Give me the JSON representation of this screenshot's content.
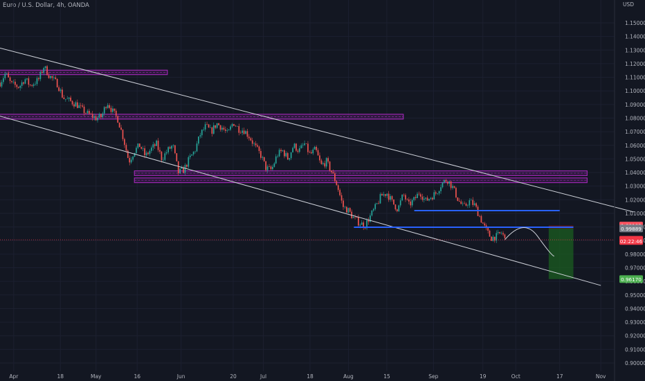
{
  "header": {
    "title": "Euro / U.S. Dollar, 4h, OANDA",
    "currency": "USD"
  },
  "colors": {
    "background": "#131722",
    "up": "#26a69a",
    "down": "#ef5350",
    "channel": "#d1d4dc",
    "zone": "#9c27b0",
    "support": "#2962ff",
    "target_zone": "#1b5e20",
    "stop_zone": "#b71c1c",
    "last_price_badge": "#f23645",
    "target_badge": "#4caf50",
    "entry_badge": "#f7525f",
    "entry_second_badge": "#787b86"
  },
  "chart_data": {
    "type": "candlestick",
    "title": "Euro / U.S. Dollar, 4h, OANDA",
    "xlabel": "",
    "ylabel": "USD",
    "ylim": [
      0.9,
      1.16
    ],
    "y_ticks": [
      1.15,
      1.14,
      1.13,
      1.12,
      1.11,
      1.1,
      1.09,
      1.08,
      1.07,
      1.06,
      1.05,
      1.04,
      1.03,
      1.02,
      1.01,
      1.0,
      0.99,
      0.98,
      0.97,
      0.96,
      0.95,
      0.94,
      0.93,
      0.92,
      0.91,
      0.9
    ],
    "y_tick_labels": [
      "1.15000",
      "1.14000",
      "1.13000",
      "1.12000",
      "1.11000",
      "1.10000",
      "1.09000",
      "1.08000",
      "1.07000",
      "1.06000",
      "1.05000",
      "1.04000",
      "1.03000",
      "1.02000",
      "1.01000",
      "1.00000",
      "0.99000",
      "0.98000",
      "0.97000",
      "0.96000",
      "0.95000",
      "0.94000",
      "0.93000",
      "0.92000",
      "0.91000",
      "0.90000"
    ],
    "x_range": [
      "2022-03-27",
      "2022-11-06"
    ],
    "x_ticks": [
      {
        "label": "Apr",
        "date": "2022-04-01"
      },
      {
        "label": "18",
        "date": "2022-04-18"
      },
      {
        "label": "May",
        "date": "2022-05-01"
      },
      {
        "label": "16",
        "date": "2022-05-16"
      },
      {
        "label": "Jun",
        "date": "2022-06-01"
      },
      {
        "label": "20",
        "date": "2022-06-20"
      },
      {
        "label": "Jul",
        "date": "2022-07-01"
      },
      {
        "label": "18",
        "date": "2022-07-18"
      },
      {
        "label": "Aug",
        "date": "2022-08-01"
      },
      {
        "label": "15",
        "date": "2022-08-15"
      },
      {
        "label": "Sep",
        "date": "2022-09-01"
      },
      {
        "label": "19",
        "date": "2022-09-19"
      },
      {
        "label": "Oct",
        "date": "2022-10-01"
      },
      {
        "label": "17",
        "date": "2022-10-17"
      },
      {
        "label": "Nov",
        "date": "2022-11-01"
      }
    ],
    "price_path": [
      [
        "2022-03-27",
        1.106
      ],
      [
        "2022-03-29",
        1.113
      ],
      [
        "2022-03-31",
        1.105
      ],
      [
        "2022-04-03",
        1.103
      ],
      [
        "2022-04-05",
        1.109
      ],
      [
        "2022-04-07",
        1.104
      ],
      [
        "2022-04-10",
        1.108
      ],
      [
        "2022-04-12",
        1.118
      ],
      [
        "2022-04-14",
        1.111
      ],
      [
        "2022-04-17",
        1.105
      ],
      [
        "2022-04-19",
        1.095
      ],
      [
        "2022-04-21",
        1.093
      ],
      [
        "2022-04-24",
        1.09
      ],
      [
        "2022-04-26",
        1.086
      ],
      [
        "2022-04-28",
        1.083
      ],
      [
        "2022-05-01",
        1.08
      ],
      [
        "2022-05-03",
        1.081
      ],
      [
        "2022-05-05",
        1.092
      ],
      [
        "2022-05-07",
        1.085
      ],
      [
        "2022-05-09",
        1.079
      ],
      [
        "2022-05-11",
        1.065
      ],
      [
        "2022-05-13",
        1.048
      ],
      [
        "2022-05-15",
        1.056
      ],
      [
        "2022-05-17",
        1.06
      ],
      [
        "2022-05-19",
        1.052
      ],
      [
        "2022-05-21",
        1.057
      ],
      [
        "2022-05-23",
        1.061
      ],
      [
        "2022-05-25",
        1.05
      ],
      [
        "2022-05-27",
        1.056
      ],
      [
        "2022-05-29",
        1.06
      ],
      [
        "2022-05-31",
        1.04
      ],
      [
        "2022-06-02",
        1.042
      ],
      [
        "2022-06-04",
        1.05
      ],
      [
        "2022-06-06",
        1.056
      ],
      [
        "2022-06-08",
        1.068
      ],
      [
        "2022-06-10",
        1.074
      ],
      [
        "2022-06-12",
        1.07
      ],
      [
        "2022-06-14",
        1.076
      ],
      [
        "2022-06-16",
        1.073
      ],
      [
        "2022-06-18",
        1.068
      ],
      [
        "2022-06-20",
        1.077
      ],
      [
        "2022-06-22",
        1.072
      ],
      [
        "2022-06-24",
        1.071
      ],
      [
        "2022-06-26",
        1.066
      ],
      [
        "2022-06-28",
        1.059
      ],
      [
        "2022-06-30",
        1.053
      ],
      [
        "2022-07-02",
        1.043
      ],
      [
        "2022-07-04",
        1.042
      ],
      [
        "2022-07-06",
        1.053
      ],
      [
        "2022-07-08",
        1.056
      ],
      [
        "2022-07-10",
        1.05
      ],
      [
        "2022-07-12",
        1.06
      ],
      [
        "2022-07-14",
        1.056
      ],
      [
        "2022-07-16",
        1.061
      ],
      [
        "2022-07-18",
        1.053
      ],
      [
        "2022-07-20",
        1.057
      ],
      [
        "2022-07-22",
        1.045
      ],
      [
        "2022-07-24",
        1.048
      ],
      [
        "2022-07-26",
        1.04
      ],
      [
        "2022-07-28",
        1.03
      ],
      [
        "2022-07-30",
        1.015
      ],
      [
        "2022-08-01",
        1.012
      ],
      [
        "2022-08-03",
        1.006
      ],
      [
        "2022-08-05",
        1.003
      ],
      [
        "2022-08-07",
        1.001
      ],
      [
        "2022-08-09",
        1.008
      ],
      [
        "2022-08-11",
        1.015
      ],
      [
        "2022-08-13",
        1.023
      ],
      [
        "2022-08-15",
        1.025
      ],
      [
        "2022-08-17",
        1.018
      ],
      [
        "2022-08-19",
        1.013
      ],
      [
        "2022-08-21",
        1.024
      ],
      [
        "2022-08-23",
        1.016
      ],
      [
        "2022-08-25",
        1.02
      ],
      [
        "2022-08-27",
        1.026
      ],
      [
        "2022-08-29",
        1.019
      ],
      [
        "2022-08-31",
        1.022
      ],
      [
        "2022-09-02",
        1.025
      ],
      [
        "2022-09-04",
        1.032
      ],
      [
        "2022-09-06",
        1.035
      ],
      [
        "2022-09-08",
        1.029
      ],
      [
        "2022-09-10",
        1.02
      ],
      [
        "2022-09-12",
        1.014
      ],
      [
        "2022-09-14",
        1.019
      ],
      [
        "2022-09-16",
        1.016
      ],
      [
        "2022-09-18",
        1.007
      ],
      [
        "2022-09-20",
        0.998
      ],
      [
        "2022-09-22",
        0.992
      ],
      [
        "2022-09-24",
        0.993
      ],
      [
        "2022-09-26",
        0.996
      ],
      [
        "2022-09-27",
        0.9906
      ]
    ],
    "channel_lines": [
      {
        "from": [
          "2022-03-26",
          1.132
        ],
        "to": [
          "2022-11-13",
          1.011
        ]
      },
      {
        "from": [
          "2022-03-26",
          1.082
        ],
        "to": [
          "2022-11-01",
          0.957
        ]
      }
    ],
    "zones": [
      {
        "from_date": "2022-03-26",
        "to_date": "2022-05-27",
        "top": 1.1142,
        "bottom": 1.113
      },
      {
        "from_date": "2022-03-26",
        "to_date": "2022-08-21",
        "top": 1.0818,
        "bottom": 1.0803
      },
      {
        "from_date": "2022-05-15",
        "to_date": "2022-10-27",
        "top": 1.0402,
        "bottom": 1.0388
      },
      {
        "from_date": "2022-05-15",
        "to_date": "2022-10-27",
        "top": 1.035,
        "bottom": 1.0336
      }
    ],
    "support_lines": [
      {
        "from_date": "2022-08-25",
        "to_date": "2022-10-17",
        "value": 1.012
      },
      {
        "from_date": "2022-08-03",
        "to_date": "2022-10-22",
        "value": 0.9998
      }
    ],
    "projection": [
      [
        "2022-09-27",
        0.9906
      ],
      [
        "2022-10-04",
        0.999
      ],
      [
        "2022-10-09",
        0.993
      ],
      [
        "2022-10-15",
        0.9785
      ]
    ],
    "position": {
      "from_date": "2022-10-13",
      "to_date": "2022-10-22",
      "entry": 0.99889,
      "stop": 1.00103,
      "target": 0.9617
    },
    "last_price": 0.99057,
    "price_labels": [
      {
        "text": "1.00103",
        "value": 1.00103,
        "color": "#f7525f"
      },
      {
        "text": "0.99889",
        "value": 0.99889,
        "color": "#787b86"
      },
      {
        "text": "0.99057",
        "value": 0.99057,
        "color": "#f23645"
      },
      {
        "text": "02:22:46",
        "value": 0.98967,
        "color": "#f23645"
      },
      {
        "text": "0.96170",
        "value": 0.9617,
        "color": "#4caf50"
      }
    ]
  }
}
